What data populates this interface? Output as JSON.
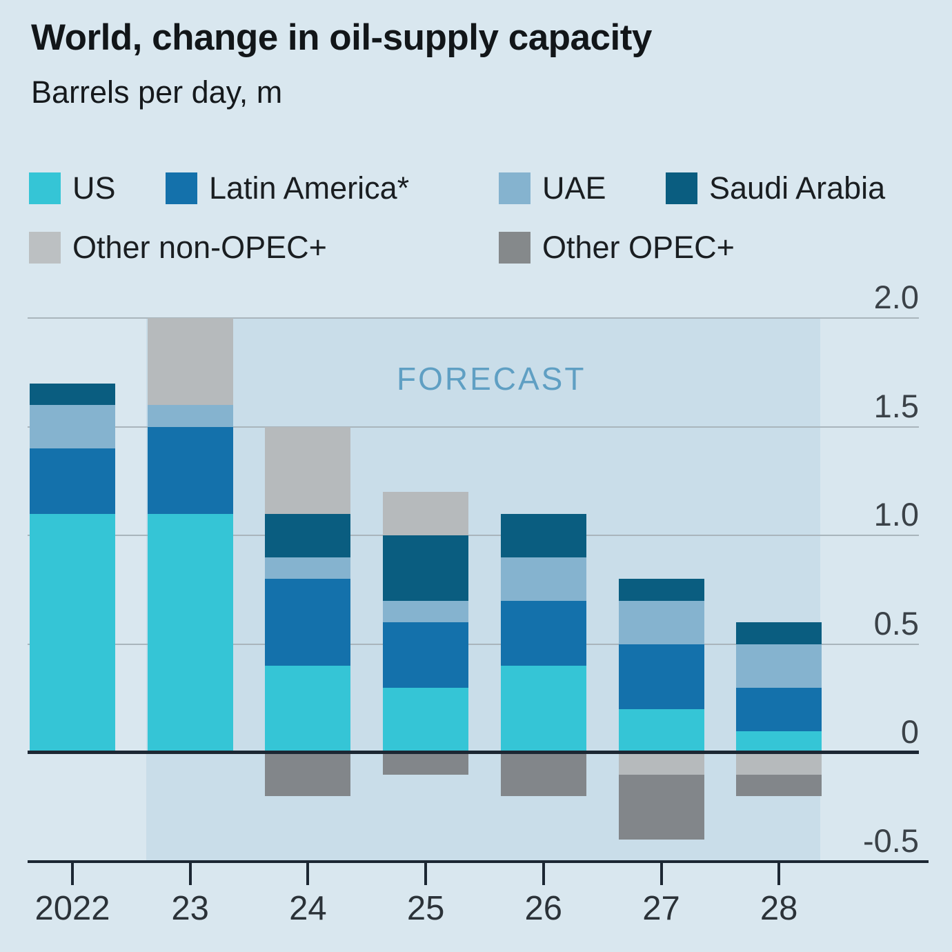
{
  "title": "World, change in oil-supply capacity",
  "subtitle": "Barrels per day, m",
  "forecast_label": "FORECAST",
  "colors": {
    "background": "#d9e7ef",
    "forecast_band": "#c9dde9",
    "forecast_text": "#5f9fc3",
    "gridline": "#a9b5bc",
    "zero_line": "#1c2733",
    "axis_line": "#1c2733",
    "tick_text": "#3b4248",
    "title_text": "#121619"
  },
  "legend": {
    "items": [
      {
        "label": "US",
        "color": "#35c5d6"
      },
      {
        "label": "Latin America*",
        "color": "#1471ab"
      },
      {
        "label": "UAE",
        "color": "#85b3cf"
      },
      {
        "label": "Saudi Arabia",
        "color": "#0a5d80"
      },
      {
        "label": "Other non-OPEC+",
        "color": "#bcc0c2"
      },
      {
        "label": "Other OPEC+",
        "color": "#85898b"
      }
    ]
  },
  "chart_data": {
    "type": "bar",
    "stacked": true,
    "title": "World, change in oil-supply capacity",
    "subtitle": "Barrels per day, m",
    "unit": "million barrels per day",
    "categories": [
      "2022",
      "23",
      "24",
      "25",
      "26",
      "27",
      "28"
    ],
    "series": [
      {
        "name": "US",
        "color": "#35c5d6",
        "values": [
          1.1,
          1.1,
          0.4,
          0.3,
          0.4,
          0.2,
          0.1
        ]
      },
      {
        "name": "Latin America*",
        "color": "#1471ab",
        "values": [
          0.3,
          0.4,
          0.4,
          0.3,
          0.3,
          0.3,
          0.2
        ]
      },
      {
        "name": "UAE",
        "color": "#85b3cf",
        "values": [
          0.2,
          0.1,
          0.1,
          0.1,
          0.2,
          0.2,
          0.2
        ]
      },
      {
        "name": "Saudi Arabia",
        "color": "#0a5d80",
        "values": [
          0.1,
          0.0,
          0.2,
          0.3,
          0.2,
          0.1,
          0.1
        ]
      },
      {
        "name": "Other non-OPEC+",
        "color": "#b6babc",
        "values": [
          0.0,
          0.4,
          0.4,
          0.2,
          0.0,
          -0.1,
          -0.1
        ]
      },
      {
        "name": "Other OPEC+",
        "color": "#82868a",
        "values": [
          0.0,
          0.0,
          -0.2,
          -0.1,
          -0.2,
          -0.3,
          -0.1
        ]
      }
    ],
    "totals_positive": [
      1.7,
      2.0,
      1.5,
      1.2,
      1.1,
      0.8,
      0.6
    ],
    "totals_negative": [
      0.0,
      0.0,
      -0.2,
      -0.1,
      -0.2,
      -0.4,
      -0.2
    ],
    "ylim": [
      -0.5,
      2.0
    ],
    "yticks": [
      {
        "label": "2.0",
        "value": 2.0
      },
      {
        "label": "1.5",
        "value": 1.5
      },
      {
        "label": "1.0",
        "value": 1.0
      },
      {
        "label": "0.5",
        "value": 0.5
      },
      {
        "label": "0",
        "value": 0.0
      },
      {
        "label": "-0.5",
        "value": -0.5
      }
    ],
    "forecast": {
      "label": "FORECAST",
      "covers_categories": [
        "23",
        "24",
        "25",
        "26",
        "27",
        "28"
      ]
    },
    "grid": true,
    "legend_position": "top"
  }
}
